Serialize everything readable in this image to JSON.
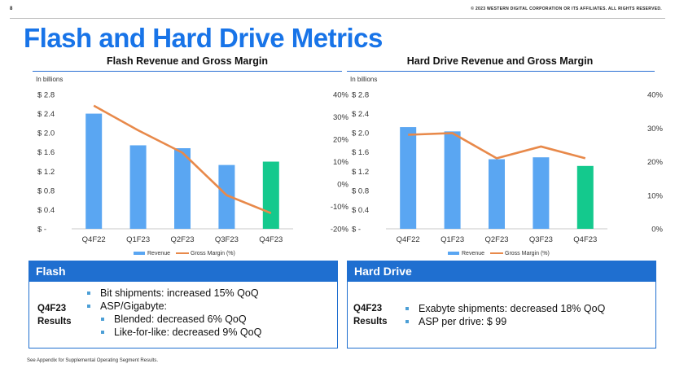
{
  "header": {
    "page_number": "8",
    "copyright": "© 2023 WESTERN DIGITAL CORPORATION OR ITS AFFILIATES. ALL RIGHTS RESERVED."
  },
  "title": "Flash and Hard Drive Metrics",
  "colors": {
    "accent": "#1874e8",
    "bar": "#5aa6f2",
    "bar_highlight": "#14c98d",
    "line": "#e8894a",
    "panel": "#1f6fd0"
  },
  "chart_data": [
    {
      "type": "bar",
      "title": "Flash Revenue and Gross Margin",
      "unit_label": "In billions",
      "categories": [
        "Q4F22",
        "Q1F23",
        "Q2F23",
        "Q3F23",
        "Q4F23"
      ],
      "series": [
        {
          "name": "Revenue",
          "type": "bar",
          "values": [
            2.4,
            1.74,
            1.68,
            1.33,
            1.4
          ],
          "highlight_index": 4
        },
        {
          "name": "Gross Margin (%)",
          "type": "line",
          "axis": "right",
          "values": [
            35,
            24,
            14,
            -5,
            -13
          ]
        }
      ],
      "ylim": [
        0,
        2.8
      ],
      "yticks": [
        "$ -",
        "$ 0.4",
        "$ 0.8",
        "$ 1.2",
        "$ 1.6",
        "$ 2.0",
        "$ 2.4",
        "$ 2.8"
      ],
      "y2lim": [
        -20,
        40
      ],
      "y2ticks": [
        "-20%",
        "-10%",
        "0%",
        "10%",
        "20%",
        "30%",
        "40%"
      ],
      "legend": [
        "Revenue",
        "Gross Margin (%)"
      ]
    },
    {
      "type": "bar",
      "title": "Hard Drive Revenue and Gross Margin",
      "unit_label": "In billions",
      "categories": [
        "Q4F22",
        "Q1F23",
        "Q2F23",
        "Q3F23",
        "Q4F23"
      ],
      "series": [
        {
          "name": "Revenue",
          "type": "bar",
          "values": [
            2.12,
            2.03,
            1.45,
            1.49,
            1.31
          ],
          "highlight_index": 4
        },
        {
          "name": "Gross Margin (%)",
          "type": "line",
          "axis": "right",
          "values": [
            28,
            28.5,
            21,
            24.5,
            21
          ]
        }
      ],
      "ylim": [
        0,
        2.8
      ],
      "yticks": [
        "$ -",
        "$ 0.4",
        "$ 0.8",
        "$ 1.2",
        "$ 1.6",
        "$ 2.0",
        "$ 2.4",
        "$ 2.8"
      ],
      "y2lim": [
        0,
        40
      ],
      "y2ticks": [
        "0%",
        "10%",
        "20%",
        "30%",
        "40%"
      ],
      "legend": [
        "Revenue",
        "Gross Margin (%)"
      ]
    }
  ],
  "panels": {
    "flash": {
      "heading": "Flash",
      "results_label_1": "Q4F23",
      "results_label_2": "Results",
      "bullets": [
        "Bit shipments: increased 15% QoQ",
        "ASP/Gigabyte:",
        "Blended: decreased 6% QoQ",
        "Like-for-like: decreased 9% QoQ"
      ]
    },
    "hdd": {
      "heading": "Hard Drive",
      "results_label_1": "Q4F23",
      "results_label_2": "Results",
      "bullets": [
        "Exabyte shipments: decreased 18% QoQ",
        "ASP per drive: $ 99"
      ]
    }
  },
  "footnote": "See Appendix for Supplemental Operating Segment Results."
}
